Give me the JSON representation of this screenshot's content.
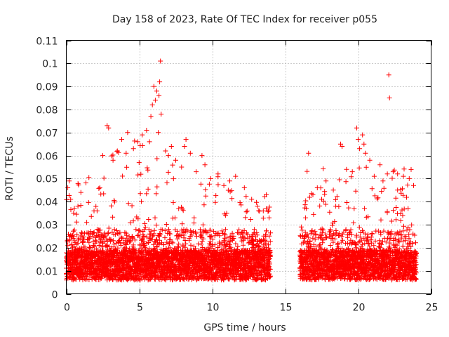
{
  "chart_data": {
    "type": "scatter",
    "title": "Day 158 of 2023, Rate Of TEC Index for receiver p055",
    "xlabel": "GPS time / hours",
    "ylabel": "ROTI / TECUs",
    "xlim": [
      0,
      25
    ],
    "ylim": [
      0,
      0.11
    ],
    "xticks": [
      "0",
      "5",
      "10",
      "15",
      "20",
      "25"
    ],
    "yticks": [
      "0",
      "0.01",
      "0.02",
      "0.03",
      "0.04",
      "0.05",
      "0.06",
      "0.07",
      "0.08",
      "0.09",
      "0.1",
      "0.11"
    ],
    "grid": true,
    "marker": "+",
    "color": "#ff0000",
    "data_gap_hours": [
      14.0,
      16.0
    ],
    "series": [
      {
        "name": "ROTI",
        "points": [
          [
            0.1,
            0.046
          ],
          [
            0.2,
            0.049
          ],
          [
            0.3,
            0.041
          ],
          [
            0.5,
            0.035
          ],
          [
            0.8,
            0.038
          ],
          [
            1.0,
            0.044
          ],
          [
            1.4,
            0.031
          ],
          [
            1.9,
            0.036
          ],
          [
            2.3,
            0.046
          ],
          [
            2.5,
            0.06
          ],
          [
            2.8,
            0.073
          ],
          [
            2.9,
            0.072
          ],
          [
            3.2,
            0.058
          ],
          [
            3.5,
            0.062
          ],
          [
            3.8,
            0.067
          ],
          [
            4.1,
            0.061
          ],
          [
            4.2,
            0.07
          ],
          [
            4.6,
            0.063
          ],
          [
            4.9,
            0.066
          ],
          [
            5.2,
            0.069
          ],
          [
            5.5,
            0.071
          ],
          [
            5.7,
            0.066
          ],
          [
            5.8,
            0.077
          ],
          [
            5.9,
            0.082
          ],
          [
            6.0,
            0.09
          ],
          [
            6.1,
            0.084
          ],
          [
            6.2,
            0.088
          ],
          [
            6.3,
            0.07
          ],
          [
            6.35,
            0.086
          ],
          [
            6.4,
            0.092
          ],
          [
            6.45,
            0.101
          ],
          [
            6.5,
            0.078
          ],
          [
            6.8,
            0.062
          ],
          [
            7.0,
            0.06
          ],
          [
            7.2,
            0.064
          ],
          [
            7.5,
            0.058
          ],
          [
            7.9,
            0.055
          ],
          [
            8.1,
            0.064
          ],
          [
            8.2,
            0.067
          ],
          [
            8.5,
            0.061
          ],
          [
            8.9,
            0.053
          ],
          [
            9.3,
            0.06
          ],
          [
            9.5,
            0.056
          ],
          [
            9.9,
            0.05
          ],
          [
            10.4,
            0.052
          ],
          [
            10.8,
            0.047
          ],
          [
            11.2,
            0.049
          ],
          [
            11.6,
            0.051
          ],
          [
            12.2,
            0.046
          ],
          [
            12.7,
            0.041
          ],
          [
            13.1,
            0.038
          ],
          [
            13.5,
            0.036
          ],
          [
            13.7,
            0.043
          ],
          [
            13.9,
            0.033
          ],
          [
            16.1,
            0.029
          ],
          [
            16.4,
            0.033
          ],
          [
            16.6,
            0.061
          ],
          [
            16.9,
            0.043
          ],
          [
            17.2,
            0.046
          ],
          [
            17.5,
            0.041
          ],
          [
            17.8,
            0.049
          ],
          [
            18.3,
            0.045
          ],
          [
            18.8,
            0.065
          ],
          [
            18.9,
            0.064
          ],
          [
            19.2,
            0.054
          ],
          [
            19.6,
            0.053
          ],
          [
            19.9,
            0.072
          ],
          [
            20.0,
            0.067
          ],
          [
            20.1,
            0.063
          ],
          [
            20.3,
            0.069
          ],
          [
            20.4,
            0.065
          ],
          [
            20.5,
            0.061
          ],
          [
            20.8,
            0.058
          ],
          [
            21.1,
            0.051
          ],
          [
            21.5,
            0.056
          ],
          [
            21.7,
            0.049
          ],
          [
            22.0,
            0.052
          ],
          [
            22.1,
            0.095
          ],
          [
            22.15,
            0.085
          ],
          [
            22.4,
            0.053
          ],
          [
            22.7,
            0.045
          ],
          [
            23.1,
            0.051
          ],
          [
            23.5,
            0.05
          ],
          [
            23.8,
            0.047
          ]
        ]
      }
    ]
  }
}
